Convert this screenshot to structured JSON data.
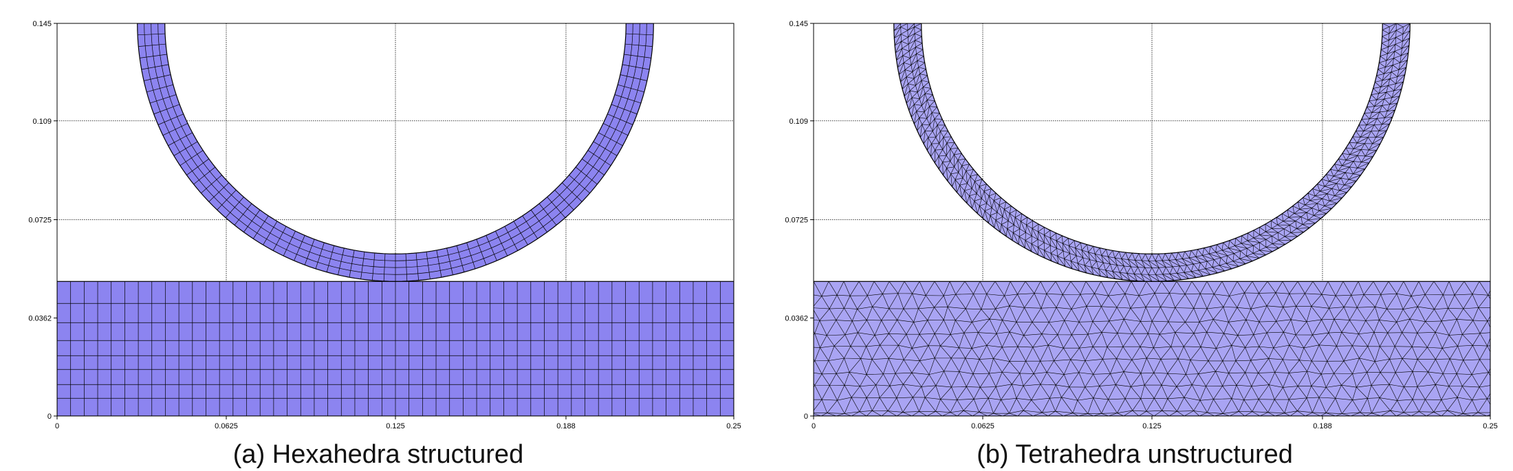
{
  "colors": {
    "mesh_fill": "#8c84f0",
    "mesh_fill_light": "#a9a4f3",
    "edge": "#000000",
    "grid": "#000000"
  },
  "axes": {
    "x_ticks": [
      "0",
      "0.0625",
      "0.125",
      "0.188",
      "0.25"
    ],
    "y_ticks": [
      "0",
      "0.0362",
      "0.0725",
      "0.109",
      "0.145"
    ],
    "xlim": [
      0,
      0.25
    ],
    "ylim": [
      0,
      0.145
    ]
  },
  "panels": [
    {
      "caption": "(a) Hexahedra structured",
      "mesh": "hexahedra-structured"
    },
    {
      "caption": "(b) Tetrahedra unstructured",
      "mesh": "tetrahedra-unstructured"
    }
  ]
}
